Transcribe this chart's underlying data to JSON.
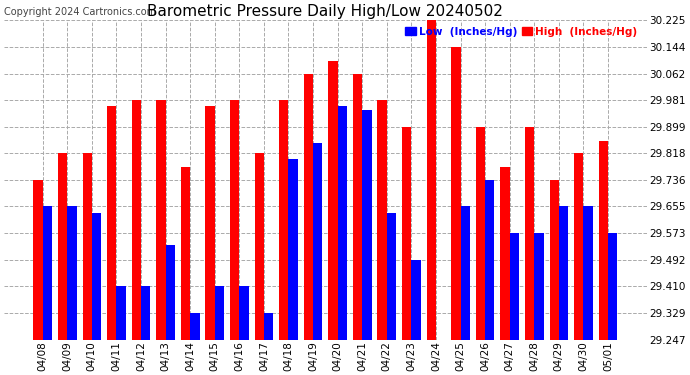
{
  "title": "Barometric Pressure Daily High/Low 20240502",
  "copyright": "Copyright 2024 Cartronics.com",
  "legend_low": "Low  (Inches/Hg)",
  "legend_high": "High  (Inches/Hg)",
  "dates": [
    "04/08",
    "04/09",
    "04/10",
    "04/11",
    "04/12",
    "04/13",
    "04/14",
    "04/15",
    "04/16",
    "04/17",
    "04/18",
    "04/19",
    "04/20",
    "04/21",
    "04/22",
    "04/23",
    "04/24",
    "04/25",
    "04/26",
    "04/27",
    "04/28",
    "04/29",
    "04/30",
    "05/01"
  ],
  "high_values": [
    29.736,
    29.818,
    29.818,
    29.962,
    29.981,
    29.981,
    29.776,
    29.962,
    29.981,
    29.818,
    29.981,
    30.062,
    30.1,
    30.062,
    29.981,
    29.899,
    30.225,
    30.144,
    29.899,
    29.776,
    29.899,
    29.736,
    29.818,
    29.855
  ],
  "low_values": [
    29.655,
    29.655,
    29.636,
    29.41,
    29.41,
    29.536,
    29.329,
    29.41,
    29.41,
    29.329,
    29.8,
    29.85,
    29.962,
    29.95,
    29.636,
    29.492,
    29.247,
    29.655,
    29.736,
    29.573,
    29.573,
    29.655,
    29.655,
    29.573
  ],
  "ylim_min": 29.247,
  "ylim_max": 30.225,
  "yticks": [
    29.247,
    29.329,
    29.41,
    29.492,
    29.573,
    29.655,
    29.736,
    29.818,
    29.899,
    29.981,
    30.062,
    30.144,
    30.225
  ],
  "bar_width": 0.38,
  "low_color": "#0000ff",
  "high_color": "#ff0000",
  "bg_color": "#ffffff",
  "grid_color": "#aaaaaa",
  "title_fontsize": 11,
  "tick_fontsize": 7.5,
  "copyright_fontsize": 7
}
